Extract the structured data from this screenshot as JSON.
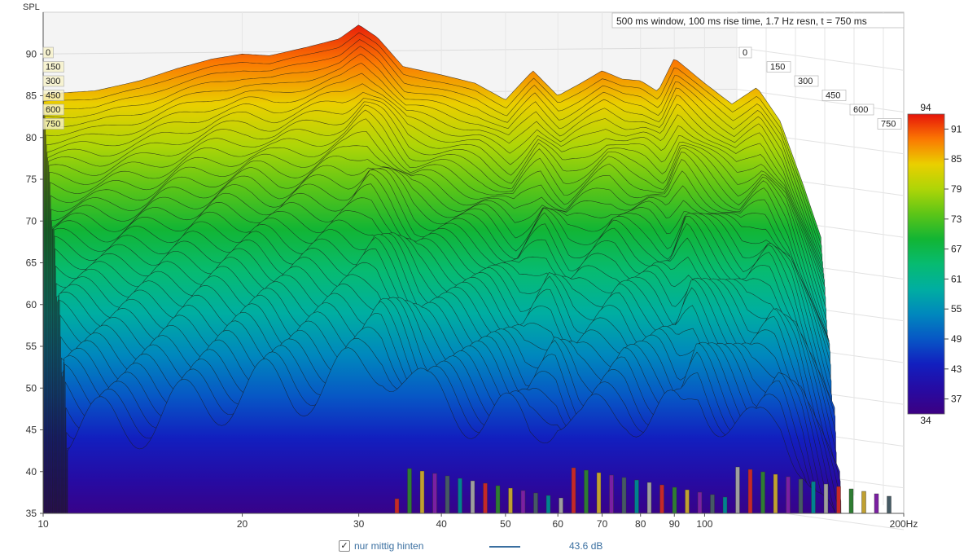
{
  "chart_data": {
    "type": "waterfall",
    "title": "500 ms window, 100 ms rise time,  1.7 Hz resn, t = 750 ms",
    "ylabel": "SPL",
    "xlabel": "",
    "x_scale": "log",
    "xlim": [
      10,
      200
    ],
    "ylim": [
      35,
      95
    ],
    "x_ticks": [
      "10",
      "20",
      "30",
      "40",
      "50",
      "60",
      "70",
      "80",
      "90",
      "100",
      "200Hz"
    ],
    "y_ticks": [
      "35",
      "40",
      "45",
      "50",
      "55",
      "60",
      "65",
      "70",
      "75",
      "80",
      "85",
      "90"
    ],
    "time_ticks_ms": [
      "0",
      "150",
      "300",
      "450",
      "600",
      "750"
    ],
    "colorbar": {
      "min": "34",
      "max": "94",
      "ticks": [
        "91",
        "85",
        "79",
        "73",
        "67",
        "61",
        "55",
        "49",
        "43",
        "37"
      ]
    },
    "series": [
      {
        "name": "0 ms",
        "x": [
          10,
          12,
          14,
          16,
          18,
          20,
          22,
          25,
          28,
          30,
          32,
          35,
          40,
          45,
          50,
          55,
          60,
          65,
          70,
          75,
          80,
          85,
          90,
          100,
          110,
          120,
          130,
          140,
          150
        ],
        "y": [
          85.2,
          85.6,
          86.8,
          88.3,
          89.4,
          90.0,
          89.8,
          90.8,
          91.8,
          93.5,
          92.0,
          88.5,
          87.5,
          86.5,
          84.5,
          88.0,
          85.0,
          86.5,
          88.0,
          87.0,
          86.8,
          85.5,
          89.5,
          86.5,
          84.0,
          86.0,
          82.0,
          75.0,
          68.0
        ]
      }
    ],
    "grid": true
  },
  "legend": {
    "checked_mark": "✓",
    "name": "nur mittig hinten",
    "value": "43.6 dB",
    "color": "#3a6fa0"
  }
}
